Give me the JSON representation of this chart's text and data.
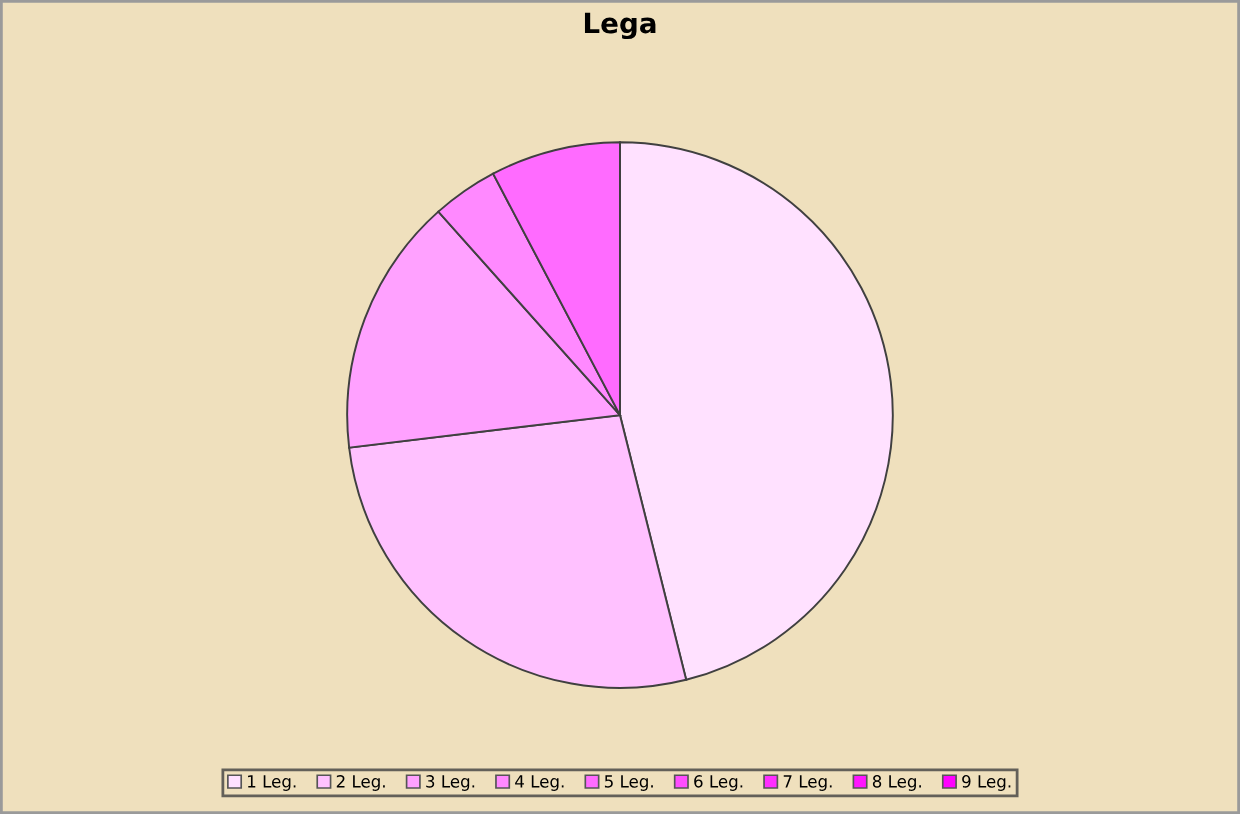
{
  "chart_data": {
    "type": "pie",
    "title": "Lega",
    "categories": [
      "1 Leg.",
      "2 Leg.",
      "3 Leg.",
      "4 Leg.",
      "5 Leg.",
      "6 Leg.",
      "7 Leg.",
      "8 Leg.",
      "9 Leg."
    ],
    "values": [
      46.1,
      27.0,
      15.3,
      3.9,
      7.7,
      0,
      0,
      0,
      0
    ],
    "colors": [
      "#ffe1ff",
      "#ffc1ff",
      "#ffa1ff",
      "#ff89ff",
      "#ff6bff",
      "#ff4dff",
      "#ff2dff",
      "#ff14ff",
      "#ff00ff"
    ],
    "legend": "bottom"
  }
}
